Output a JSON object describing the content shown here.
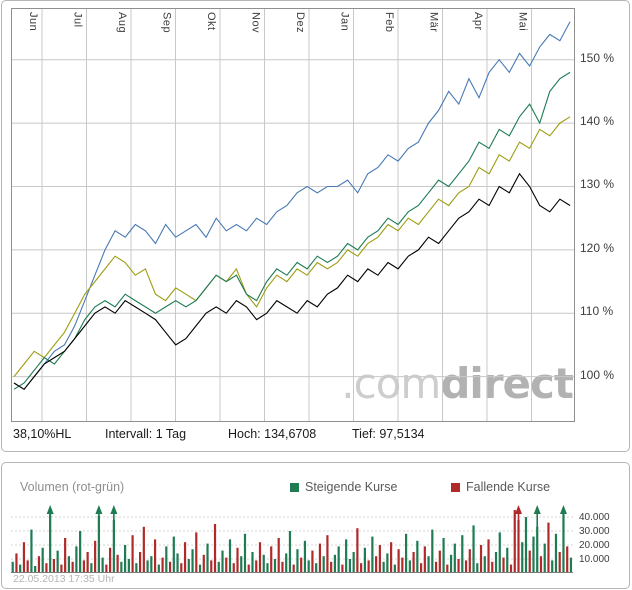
{
  "watermark": {
    "prefix": ".com",
    "suffix": "direct"
  },
  "stats": {
    "hl": "38,10%HL",
    "interval": "Intervall: 1 Tag",
    "high": "Hoch: 134,6708",
    "low": "Tief: 97,5134"
  },
  "footer": {
    "timestamp": "22.05.2013 17:35 Uhr"
  },
  "colors": {
    "up": "#1e7b52",
    "down": "#b02a2a",
    "grid": "#c8c8c8",
    "axis_text": "#3d3d3d"
  },
  "chart_data": [
    {
      "type": "line",
      "title": "",
      "xlabel": "",
      "ylabel": "%",
      "x_axis": {
        "tick_labels": [
          "Jun",
          "Jul",
          "Aug",
          "Sep",
          "Okt",
          "Nov",
          "Dez",
          "Jan",
          "Feb",
          "Mär",
          "Apr",
          "Mai"
        ]
      },
      "y_axis": {
        "ticks": [
          100,
          110,
          120,
          130,
          140,
          150
        ],
        "tick_labels": [
          "100 %",
          "110 %",
          "120 %",
          "130 %",
          "140 %",
          "150 %"
        ],
        "range": [
          93,
          158
        ]
      },
      "grid": true,
      "series": [
        {
          "name": "series-blue",
          "color": "#4779b5",
          "values": [
            99,
            98,
            100,
            102,
            104,
            105,
            108,
            112,
            116,
            120,
            123,
            122,
            124,
            123,
            121,
            124,
            122,
            123,
            124,
            122,
            125,
            123,
            124,
            123,
            125,
            124,
            126,
            127,
            129,
            130,
            129,
            130,
            130,
            131,
            129,
            132,
            133,
            135,
            134,
            136,
            137,
            140,
            142,
            145,
            143,
            147,
            144,
            148,
            150,
            148,
            151,
            149,
            152,
            154,
            153,
            156
          ]
        },
        {
          "name": "series-olive",
          "color": "#9d9d13",
          "values": [
            100,
            102,
            104,
            103,
            105,
            107,
            110,
            113,
            115,
            117,
            119,
            118,
            116,
            117,
            113,
            112,
            114,
            113,
            112,
            114,
            116,
            115,
            117,
            113,
            111,
            114,
            116,
            115,
            117,
            116,
            118,
            117,
            118,
            120,
            119,
            121,
            122,
            124,
            123,
            125,
            124,
            126,
            128,
            127,
            129,
            130,
            133,
            132,
            135,
            134,
            137,
            136,
            139,
            138,
            140,
            141
          ]
        },
        {
          "name": "series-green",
          "color": "#1e7b52",
          "values": [
            98,
            99,
            101,
            103,
            102,
            104,
            106,
            109,
            111,
            112,
            111,
            113,
            112,
            111,
            110,
            111,
            112,
            111,
            112,
            114,
            116,
            115,
            116,
            113,
            112,
            115,
            117,
            116,
            118,
            117,
            119,
            118,
            119,
            121,
            120,
            122,
            123,
            125,
            124,
            126,
            127,
            129,
            131,
            130,
            132,
            134,
            137,
            136,
            139,
            138,
            141,
            143,
            140,
            145,
            147,
            148
          ]
        },
        {
          "name": "series-black",
          "color": "#000000",
          "values": [
            99,
            98,
            100,
            102,
            103,
            104,
            106,
            108,
            110,
            111,
            110,
            112,
            111,
            110,
            109,
            107,
            105,
            106,
            108,
            110,
            111,
            110,
            112,
            111,
            109,
            110,
            112,
            111,
            110,
            112,
            111,
            113,
            114,
            116,
            115,
            117,
            116,
            118,
            117,
            119,
            120,
            122,
            121,
            123,
            125,
            126,
            128,
            127,
            130,
            129,
            132,
            130,
            127,
            126,
            128,
            127
          ]
        }
      ],
      "stats_text": [
        "38,10%HL",
        "Intervall: 1 Tag",
        "Hoch: 134,6708",
        "Tief: 97,5134"
      ]
    },
    {
      "type": "bar",
      "title": "Volumen (rot-grün)",
      "legend": [
        {
          "label": "Steigende Kurse",
          "color": "#1e7b52"
        },
        {
          "label": "Fallende Kurse",
          "color": "#b02a2a"
        }
      ],
      "y_axis": {
        "ticks": [
          10000,
          20000,
          30000,
          40000
        ],
        "tick_labels": [
          "10.000",
          "20.000",
          "30.000",
          "40.000"
        ],
        "range": [
          0,
          47000
        ]
      },
      "values_thousands": [
        8,
        14,
        6,
        22,
        9,
        31,
        5,
        12,
        18,
        7,
        44,
        10,
        16,
        6,
        25,
        12,
        8,
        19,
        30,
        9,
        15,
        7,
        23,
        41,
        11,
        6,
        18,
        38,
        13,
        8,
        20,
        10,
        27,
        7,
        15,
        33,
        9,
        12,
        24,
        6,
        11,
        19,
        8,
        26,
        14,
        7,
        22,
        10,
        17,
        29,
        6,
        13,
        21,
        9,
        35,
        8,
        16,
        11,
        24,
        7,
        18,
        12,
        28,
        6,
        15,
        9,
        22,
        13,
        7,
        19,
        10,
        25,
        8,
        14,
        30,
        6,
        17,
        11,
        23,
        9,
        16,
        7,
        21,
        12,
        27,
        8,
        13,
        19,
        6,
        24,
        10,
        15,
        32,
        7,
        18,
        9,
        26,
        12,
        20,
        8,
        14,
        22,
        6,
        17,
        11,
        28,
        9,
        15,
        23,
        7,
        19,
        12,
        31,
        8,
        16,
        25,
        6,
        13,
        21,
        10,
        27,
        9,
        17,
        34,
        7,
        20,
        12,
        24,
        8,
        15,
        29,
        11,
        18,
        6,
        45,
        38,
        22,
        40,
        16,
        26,
        33,
        12,
        21,
        36,
        9,
        28,
        15,
        42,
        19,
        11
      ],
      "colors_rows": [
        "grgrrggrgr",
        "grgrrgrggr",
        "rgrggrrgrg",
        "ggrgrrggrg",
        "rgrggrrggr",
        "grgrrggrgr",
        "rggrgrrggr",
        "grrggrgrgg",
        "rgrgrrggrg",
        "ggrrgrgrrg",
        "grgrrggrgr",
        "rggrrgrggr",
        "grrggrgrrg",
        "grgrrrggrg",
        "grgrggrgrg"
      ],
      "markers": [
        {
          "bar": 10,
          "color": "g"
        },
        {
          "bar": 23,
          "color": "g"
        },
        {
          "bar": 27,
          "color": "g"
        },
        {
          "bar": 135,
          "color": "r"
        },
        {
          "bar": 140,
          "color": "g"
        },
        {
          "bar": 147,
          "color": "g"
        }
      ]
    }
  ]
}
